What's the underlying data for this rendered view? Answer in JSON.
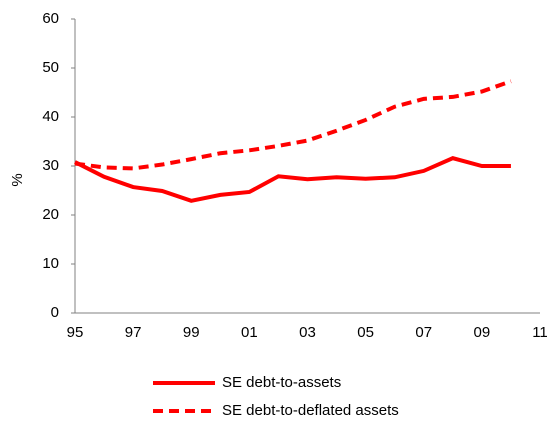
{
  "chart_data": {
    "type": "line",
    "y_label": "%",
    "categories": [
      "95",
      null,
      "97",
      null,
      "99",
      null,
      "01",
      null,
      "03",
      null,
      "05",
      null,
      "07",
      null,
      "09",
      null,
      "11"
    ],
    "series": [
      {
        "name": "SE debt-to-assets",
        "color": "#ff0000",
        "dash": false,
        "values": [
          30.8,
          27.8,
          25.7,
          24.9,
          22.9,
          24.1,
          24.7,
          27.9,
          27.3,
          27.7,
          27.4,
          27.7,
          29.0,
          31.6,
          30.0,
          30.0,
          null
        ]
      },
      {
        "name": "SE debt-to-deflated assets",
        "color": "#ff0000",
        "dash": true,
        "values": [
          30.5,
          29.7,
          29.5,
          30.3,
          31.4,
          32.6,
          33.2,
          34.1,
          35.2,
          37.2,
          39.4,
          42.1,
          43.7,
          44.1,
          45.2,
          47.3,
          null
        ]
      }
    ],
    "ylim": [
      0,
      60
    ],
    "yticks": [
      0,
      10,
      20,
      30,
      40,
      50,
      60
    ],
    "grid": false
  }
}
